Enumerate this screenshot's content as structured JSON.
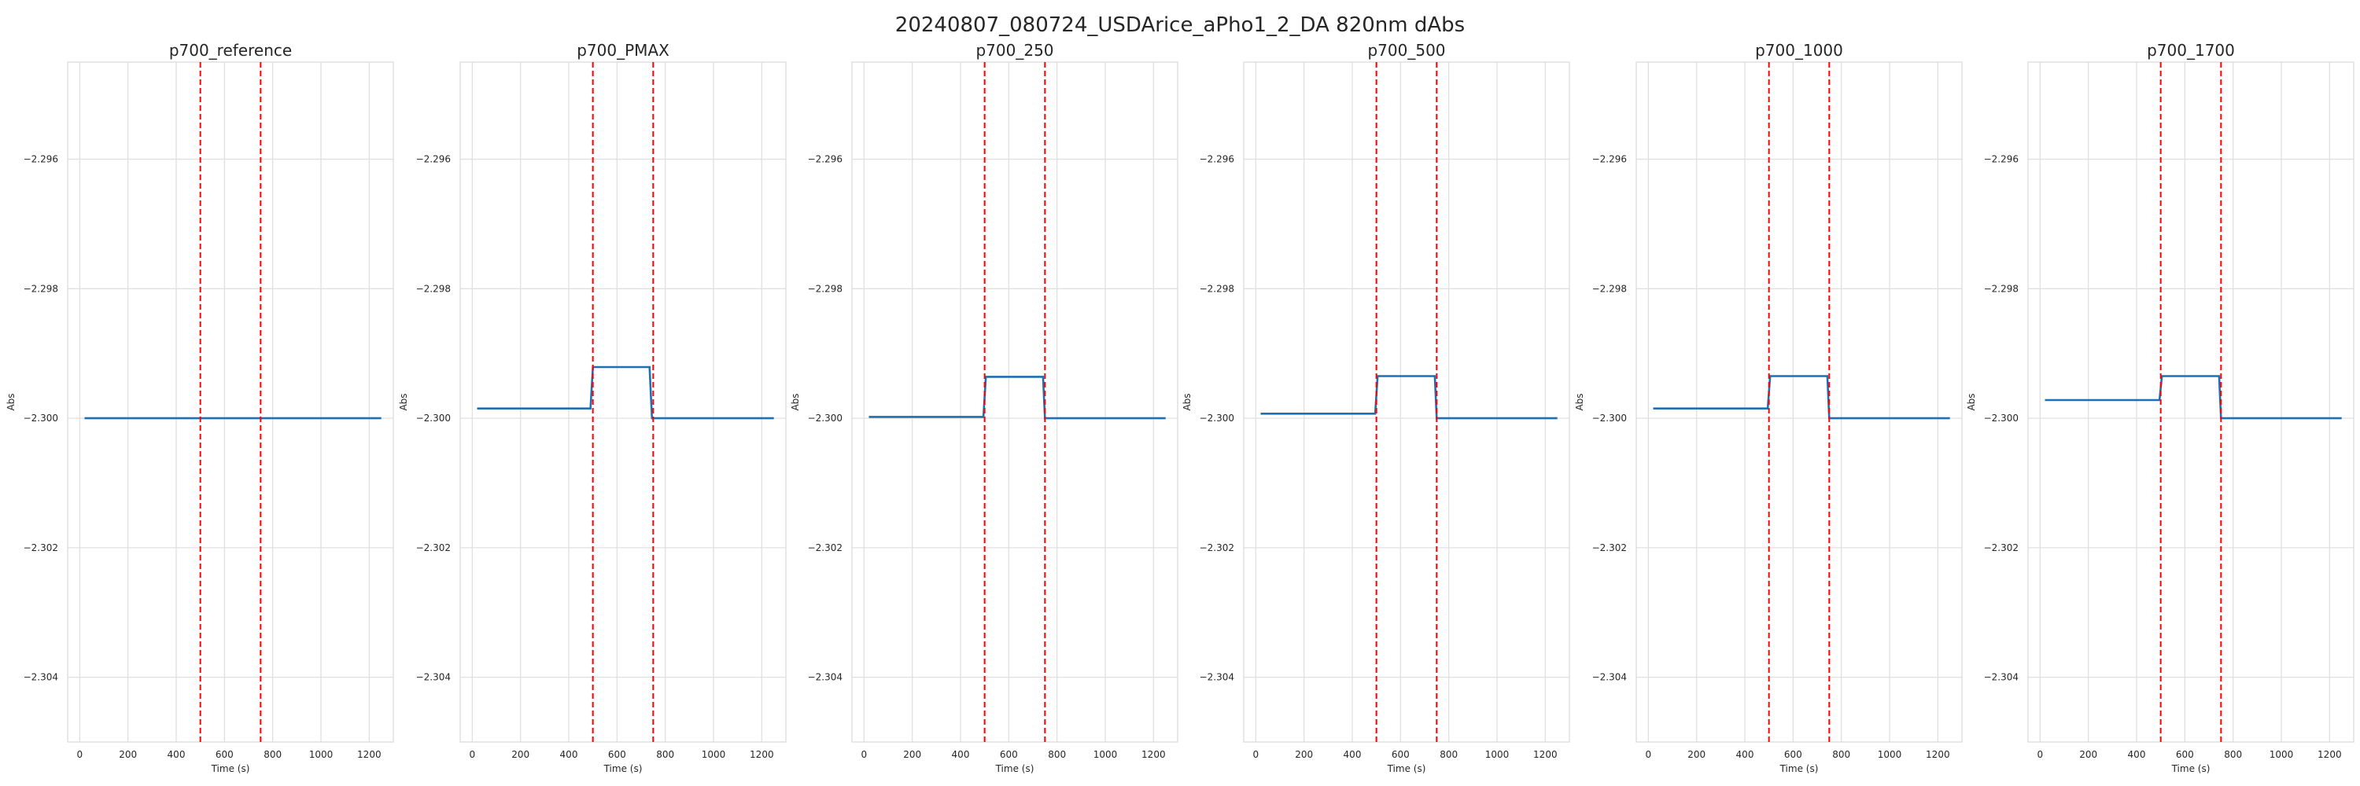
{
  "chart_data": {
    "type": "line",
    "title": "20240807_080724_USDArice_aPho1_2_DA 820nm dAbs",
    "xlabel": "Time (s)",
    "ylabel": "Abs",
    "xlim": [
      -50,
      1300
    ],
    "ylim": [
      -2.305,
      -2.2945
    ],
    "x_ticks": [
      0,
      200,
      400,
      600,
      800,
      1000,
      1200
    ],
    "y_ticks": [
      -2.304,
      -2.302,
      -2.3,
      -2.298,
      -2.296
    ],
    "y_tick_labels": [
      "−2.304",
      "−2.302",
      "−2.300",
      "−2.298",
      "−2.296"
    ],
    "grid": true,
    "vlines": [
      500,
      750
    ],
    "vline_color": "#ff0000",
    "line_color": "#1f6fb4",
    "panels": [
      {
        "title": "p700_reference",
        "x": [
          20,
          500,
          501,
          745,
          746,
          1250
        ],
        "y": [
          -2.3,
          -2.3,
          -2.3,
          -2.3,
          -2.3,
          -2.3
        ]
      },
      {
        "title": "p700_PMAX",
        "x": [
          20,
          490,
          500,
          735,
          745,
          1250
        ],
        "y": [
          -2.29985,
          -2.29985,
          -2.29921,
          -2.29921,
          -2.3,
          -2.3
        ]
      },
      {
        "title": "p700_250",
        "x": [
          20,
          495,
          505,
          742,
          750,
          1250
        ],
        "y": [
          -2.29998,
          -2.29998,
          -2.29936,
          -2.29936,
          -2.3,
          -2.3
        ]
      },
      {
        "title": "p700_500",
        "x": [
          20,
          495,
          505,
          742,
          750,
          1250
        ],
        "y": [
          -2.29993,
          -2.29993,
          -2.29935,
          -2.29935,
          -2.3,
          -2.3
        ]
      },
      {
        "title": "p700_1000",
        "x": [
          20,
          495,
          505,
          742,
          750,
          1250
        ],
        "y": [
          -2.29985,
          -2.29985,
          -2.29935,
          -2.29935,
          -2.3,
          -2.3
        ]
      },
      {
        "title": "p700_1700",
        "x": [
          20,
          495,
          505,
          742,
          750,
          1250
        ],
        "y": [
          -2.29972,
          -2.29972,
          -2.29935,
          -2.29935,
          -2.3,
          -2.3
        ]
      }
    ]
  }
}
